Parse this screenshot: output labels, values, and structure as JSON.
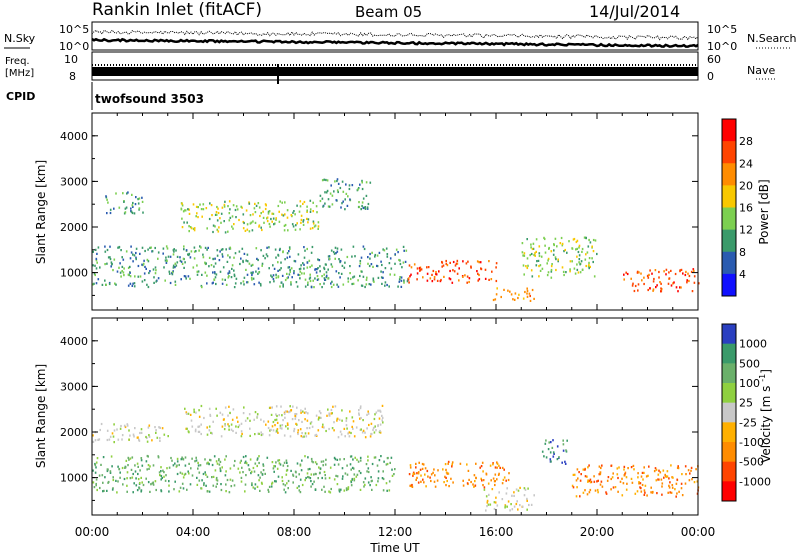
{
  "header": {
    "station": "Rankin Inlet (fitACF)",
    "beam": "Beam 05",
    "date": "14/Jul/2014"
  },
  "noise_panel": {
    "left_label": "N.Sky",
    "right_label": "N.Search",
    "left_ticks": [
      "10^5",
      "10^0"
    ],
    "right_ticks": [
      "10^5",
      "10^0"
    ]
  },
  "freq_panel": {
    "left_label_top": "Freq.",
    "left_label_unit": "[MHz]",
    "right_label": "Nave",
    "left_ticks": [
      "10",
      "8"
    ],
    "right_ticks": [
      "60",
      "0"
    ]
  },
  "cpid": {
    "label": "CPID",
    "value": "twofsound 3503"
  },
  "time_axis": {
    "label": "Time UT",
    "ticks": [
      "00:00",
      "04:00",
      "08:00",
      "12:00",
      "16:00",
      "20:00",
      "00:00"
    ]
  },
  "chart_data": [
    {
      "type": "heatmap",
      "title": "",
      "xlabel": "Time UT",
      "ylabel": "Slant Range [km]",
      "y_ticks": [
        "1000",
        "2000",
        "3000",
        "4000"
      ],
      "ylim": [
        180,
        4500
      ],
      "colorbar": {
        "label": "Power [dB]",
        "ticks": [
          "28",
          "24",
          "20",
          "16",
          "12",
          "8",
          "4"
        ],
        "colors": [
          "#ff0000",
          "#ff4400",
          "#ff8c00",
          "#f8c800",
          "#7ccf50",
          "#3a9a6a",
          "#2a5bb0",
          "#1010ff"
        ]
      },
      "scatter_regions": [
        {
          "t_start": 0.0,
          "t_end": 12.5,
          "r_min": 700,
          "r_max": 1600,
          "level": 10
        },
        {
          "t_start": 3.5,
          "t_end": 9.0,
          "r_min": 1900,
          "r_max": 2600,
          "level": 12
        },
        {
          "t_start": 9.0,
          "t_end": 11.0,
          "r_min": 2400,
          "r_max": 3100,
          "level": 8
        },
        {
          "t_start": 0.5,
          "t_end": 2.0,
          "r_min": 2300,
          "r_max": 2800,
          "level": 8
        },
        {
          "t_start": 12.5,
          "t_end": 16.0,
          "r_min": 800,
          "r_max": 1300,
          "level": 24
        },
        {
          "t_start": 15.8,
          "t_end": 17.5,
          "r_min": 400,
          "r_max": 700,
          "level": 22
        },
        {
          "t_start": 17.0,
          "t_end": 20.0,
          "r_min": 900,
          "r_max": 1800,
          "level": 12
        },
        {
          "t_start": 21.0,
          "t_end": 24.0,
          "r_min": 600,
          "r_max": 1100,
          "level": 26
        }
      ]
    },
    {
      "type": "heatmap",
      "title": "",
      "xlabel": "Time UT",
      "ylabel": "Slant Range [km]",
      "y_ticks": [
        "1000",
        "2000",
        "3000",
        "4000"
      ],
      "ylim": [
        180,
        4500
      ],
      "colorbar": {
        "label": "Velocity [m s^-1]",
        "ticks": [
          "1000",
          "500",
          "100",
          "25",
          "-25",
          "-100",
          "-500",
          "-1000"
        ],
        "colors": [
          "#2a3fc0",
          "#3a9a6a",
          "#6ab06a",
          "#8fd040",
          "#c8c8c8",
          "#ffb000",
          "#ff8c00",
          "#ff4400",
          "#ff0000"
        ]
      },
      "scatter_regions": [
        {
          "t_start": 0.0,
          "t_end": 3.0,
          "r_min": 1800,
          "r_max": 2200,
          "velocity": 0
        },
        {
          "t_start": 3.5,
          "t_end": 11.5,
          "r_min": 1900,
          "r_max": 2600,
          "velocity": 0
        },
        {
          "t_start": 0.0,
          "t_end": 12.0,
          "r_min": 700,
          "r_max": 1500,
          "velocity": 150
        },
        {
          "t_start": 12.5,
          "t_end": 16.5,
          "r_min": 800,
          "r_max": 1400,
          "velocity": -300
        },
        {
          "t_start": 17.8,
          "t_end": 18.8,
          "r_min": 1300,
          "r_max": 1900,
          "velocity": 900
        },
        {
          "t_start": 15.5,
          "t_end": 17.5,
          "r_min": 300,
          "r_max": 800,
          "velocity": 0
        },
        {
          "t_start": 19.0,
          "t_end": 24.0,
          "r_min": 600,
          "r_max": 1300,
          "velocity": -400
        }
      ]
    }
  ]
}
